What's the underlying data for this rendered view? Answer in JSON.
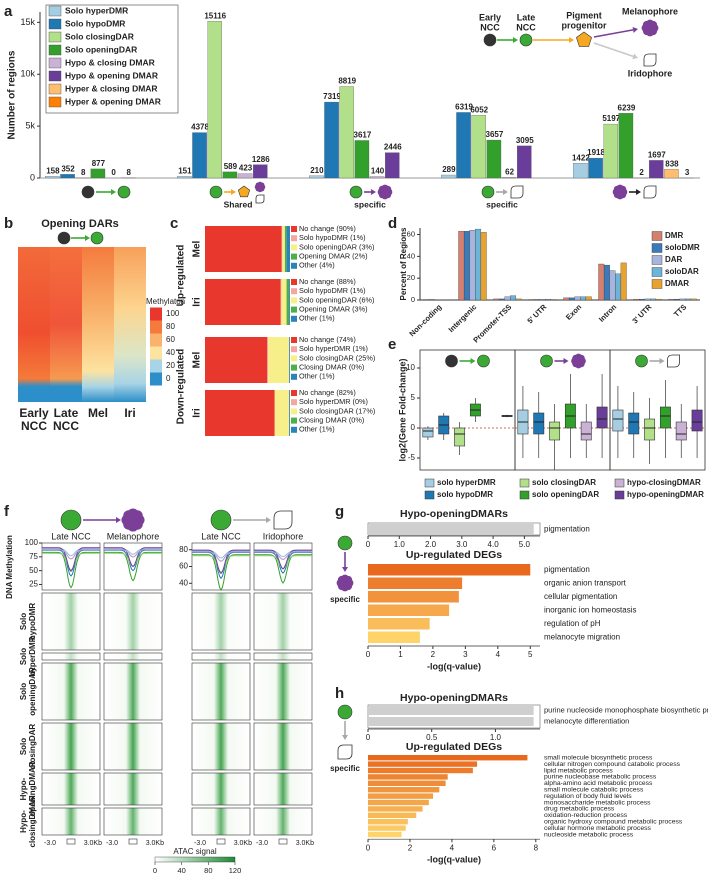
{
  "panel_labels": [
    "a",
    "b",
    "c",
    "d",
    "e",
    "f",
    "g",
    "h"
  ],
  "chart_data": [
    {
      "type": "bar",
      "ylabel": "Number of regions",
      "categories": [
        null,
        "Shared",
        "specific",
        "specific",
        null
      ],
      "series": [
        {
          "name": "Solo hyperDMR",
          "color": "#a6cee3",
          "values": [
            158,
            151,
            210,
            289,
            1422
          ]
        },
        {
          "name": "Solo hypoDMR",
          "color": "#1f78b4",
          "values": [
            352,
            4378,
            7319,
            6319,
            1918
          ]
        },
        {
          "name": "Solo closingDAR",
          "color": "#b2df8a",
          "values": [
            8,
            15116,
            8819,
            6052,
            5197
          ]
        },
        {
          "name": "Solo openingDAR",
          "color": "#33a02c",
          "values": [
            877,
            589,
            3617,
            3657,
            6239
          ]
        },
        {
          "name": "Hypo & closing DMAR",
          "color": "#cab2d6",
          "values": [
            0,
            423,
            140,
            62,
            2
          ]
        },
        {
          "name": "Hypo & opening DMAR",
          "color": "#6a3d9a",
          "values": [
            8,
            1286,
            2446,
            3095,
            1697
          ]
        },
        {
          "name": "Hyper & closing DMAR",
          "color": "#fdbf6f",
          "values": [
            null,
            null,
            null,
            null,
            838
          ]
        },
        {
          "name": "Hyper & opening DMAR",
          "color": "#ff7f00",
          "values": [
            null,
            null,
            null,
            null,
            3
          ]
        }
      ],
      "ylim": [
        0,
        16000
      ],
      "yticks": [
        0,
        {
          "value": 5000,
          "label": "5k"
        },
        {
          "value": 10000,
          "label": "10k"
        },
        {
          "value": 15000,
          "label": "15k"
        }
      ],
      "legend": "upper left"
    },
    {
      "type": "bar",
      "ylabel": "Percent of Regions",
      "categories": [
        "Non-coding",
        "Intergenic",
        "Promoter-TSS",
        "5' UTR",
        "Exon",
        "Intron",
        "3' UTR",
        "TTS"
      ],
      "series": [
        {
          "name": "DMR",
          "color": "#d4806f",
          "values": [
            0.5,
            63,
            1,
            0.5,
            2,
            33,
            0.8,
            0.8
          ]
        },
        {
          "name": "soloDMR",
          "color": "#3d7ab8",
          "values": [
            0.5,
            63,
            1,
            0.5,
            2,
            32,
            0.8,
            0.8
          ]
        },
        {
          "name": "DAR",
          "color": "#a9b4dd",
          "values": [
            0.3,
            64,
            3,
            0.8,
            3,
            27,
            1,
            1
          ]
        },
        {
          "name": "soloDAR",
          "color": "#6cb4d8",
          "values": [
            0.3,
            65,
            4,
            0.8,
            3,
            24,
            1,
            1
          ]
        },
        {
          "name": "DMAR",
          "color": "#e8a22f",
          "values": [
            0.3,
            62,
            1,
            0.5,
            3,
            34,
            0.8,
            1
          ]
        }
      ],
      "ylim": [
        0,
        66
      ],
      "yticks": [
        0,
        20,
        40,
        60
      ],
      "legend": "upper right"
    },
    {
      "type": "box",
      "ylabel": "log2(Gene Fold-change)",
      "series": [
        {
          "name": "solo hyperDMR",
          "color": "#a6cee3",
          "values": [
            [
              -2,
              -1.5,
              -0.5,
              0,
              0.3
            ],
            [
              -5,
              -1,
              1,
              3,
              7
            ],
            [
              -5,
              -0.5,
              1.5,
              3,
              7
            ]
          ]
        },
        {
          "name": "solo hypoDMR",
          "color": "#1f78b4",
          "values": [
            [
              -2,
              -1,
              0.5,
              2,
              2.5
            ],
            [
              -5,
              -1,
              1,
              2.5,
              6
            ],
            [
              -5,
              -1,
              1,
              2.5,
              6
            ]
          ]
        },
        {
          "name": "solo closingDAR",
          "color": "#b2df8a",
          "values": [
            [
              -4.5,
              -3,
              -1,
              0,
              1
            ],
            [
              -7,
              -2,
              0,
              1,
              4
            ],
            [
              -6,
              -2,
              0,
              1.5,
              5
            ]
          ]
        },
        {
          "name": "solo openingDAR",
          "color": "#33a02c",
          "values": [
            [
              1,
              2,
              3,
              4,
              5
            ],
            [
              -5,
              0,
              2,
              4,
              9
            ],
            [
              -5,
              0,
              2,
              3.5,
              8
            ]
          ]
        },
        {
          "name": "hypo-closingDMAR",
          "color": "#cab2d6",
          "values": [
            null,
            [
              -5,
              -2,
              -1,
              1,
              4
            ],
            [
              -5,
              -2,
              -1,
              1,
              4
            ]
          ]
        },
        {
          "name": "hypo-openingDMAR",
          "color": "#6a3d9a",
          "values": [
            [
              1.8,
              1.9,
              2,
              2.1,
              2.2
            ],
            [
              -5,
              0,
              1.5,
              3.5,
              9
            ],
            [
              -5,
              -0.5,
              1,
              3,
              7
            ]
          ]
        }
      ],
      "ylim": [
        -7,
        13
      ],
      "yticks": [
        -5,
        0,
        5,
        10
      ],
      "legend": "lower center"
    },
    {
      "type": "barh",
      "title": "Hypo-openingDMARs",
      "categories": [
        "pigmentation"
      ],
      "values": [
        5.3
      ],
      "label_colors": [
        "#e41a1c"
      ],
      "color": "#cfcfcf",
      "xlim": [
        0,
        5.5
      ],
      "xticks": [
        0,
        {
          "value": 1,
          "label": "1.0"
        },
        {
          "value": 2,
          "label": "2.0"
        },
        {
          "value": 3,
          "label": "3.0"
        },
        {
          "value": 4,
          "label": "4.0"
        },
        {
          "value": 5,
          "label": "5.0"
        }
      ]
    },
    {
      "type": "barh",
      "title": "Up-regulated DEGs",
      "categories": [
        "pigmentation",
        "organic anion transport",
        "cellular pigmentation",
        "inorganic ion homeostasis",
        "regulation of pH",
        "melanocyte migration"
      ],
      "values": [
        5.0,
        2.9,
        2.8,
        2.5,
        1.9,
        1.6
      ],
      "label_colors": [
        "#e41a1c",
        "#333333",
        "#333333",
        "#333333",
        "#333333",
        "#333333"
      ],
      "color": "#e8691e",
      "xlim": [
        0,
        5.3
      ],
      "xticks": [
        0,
        1,
        2,
        3,
        4,
        5
      ],
      "xlabel": "-log(q-value)"
    },
    {
      "type": "barh",
      "title": "Hypo-openingDMARs",
      "categories": [
        "purine nucleoside monophosphate biosynthetic process",
        "melanocyte differentiation"
      ],
      "values": [
        1.3,
        1.3
      ],
      "label_colors": [
        "#e41a1c",
        "#333333"
      ],
      "color": "#cfcfcf",
      "xlim": [
        0,
        1.35
      ],
      "xticks": [
        0,
        0.5,
        {
          "value": 1,
          "label": "1.0"
        }
      ]
    },
    {
      "type": "barh",
      "title": "Up-regulated DEGs",
      "categories": [
        "small molecule biosynthetic process",
        "cellular nitrogen compound catabolic process",
        "lipid metabolic process",
        "purine nucleobase metabolic process",
        "alpha-amino acid metabolic process",
        "small molecule catabolic process",
        "regulation of body fluid levels",
        "monosaccharide metabolic process",
        "drug metabolic process",
        "oxidation-reduction process",
        "organic hydroxy compound metabolic process",
        "cellular hormone metabolic process",
        "nucleoside metabolic process"
      ],
      "values": [
        7.6,
        5.2,
        5.0,
        3.8,
        3.7,
        3.4,
        3.1,
        2.9,
        2.6,
        2.3,
        1.9,
        1.8,
        1.6
      ],
      "label_colors": [
        "#333333",
        "#333333",
        "#333333",
        "#e41a1c",
        "#333333",
        "#333333",
        "#333333",
        "#333333",
        "#333333",
        "#333333",
        "#333333",
        "#333333",
        "#333333"
      ],
      "color": "#e8691e",
      "xlim": [
        0,
        8.2
      ],
      "xticks": [
        0,
        2,
        4,
        6,
        8
      ],
      "xlabel": "-log(q-value)"
    }
  ],
  "schematic": {
    "nodes": [
      {
        "lines": [
          "Early",
          "NCC"
        ],
        "color": "#222222"
      },
      {
        "lines": [
          "Late",
          "NCC"
        ],
        "color": "#3aaa35"
      },
      {
        "lines": [
          "Pigment",
          "progenitor"
        ],
        "color": "#f7a823"
      },
      {
        "lines": [
          "Melanophore"
        ],
        "color": "#7b3f98"
      },
      {
        "lines": [
          "Iridophore"
        ],
        "color": "#a8a8a8"
      }
    ]
  },
  "heatmap": {
    "title": "Opening DARs",
    "columns": [
      {
        "lines": [
          "Early",
          "NCC"
        ],
        "color": "#111111"
      },
      {
        "lines": [
          "Late",
          "NCC"
        ],
        "color": "#3aaa35"
      },
      {
        "lines": [
          "Mel"
        ],
        "color": "#7b3f98"
      },
      {
        "lines": [
          "Iri"
        ],
        "color": "#a8a8a8"
      }
    ],
    "legend_title": "Methylaton",
    "clim": [
      0,
      100
    ],
    "ticks": [
      100,
      80,
      60,
      40,
      20,
      0
    ],
    "tick_colors": [
      "#e8372c",
      "#f47b3d",
      "#f9b36c",
      "#fde3a0",
      "#a9d4e6",
      "#2c8fc9"
    ]
  },
  "stacked": {
    "groups": [
      {
        "label": "Up-regulated",
        "blocks": [
          {
            "label": "Mel",
            "color": "#7b3f98",
            "items": [
              {
                "label": "No change (90%)",
                "value": 90,
                "color": "#e8372c"
              },
              {
                "label": "Solo hypoDMR (1%)",
                "value": 1,
                "color": "#f4a6a0"
              },
              {
                "label": "Solo openingDAR (3%)",
                "value": 3,
                "color": "#f7ef8a"
              },
              {
                "label": "Opening DMAR (2%)",
                "value": 2,
                "color": "#4daf4a"
              },
              {
                "label": "Other (4%)",
                "value": 4,
                "color": "#2b83ba"
              }
            ]
          },
          {
            "label": "Iri",
            "color": "#a8a8a8",
            "items": [
              {
                "label": "No change (88%)",
                "value": 88,
                "color": "#e8372c"
              },
              {
                "label": "Solo hypoDMR (1%)",
                "value": 1,
                "color": "#f4a6a0"
              },
              {
                "label": "Solo openingDAR (6%)",
                "value": 6,
                "color": "#f7ef8a"
              },
              {
                "label": "Opening DMAR (3%)",
                "value": 3,
                "color": "#4daf4a"
              },
              {
                "label": "Other (1%)",
                "value": 1,
                "color": "#2b83ba"
              }
            ]
          }
        ]
      },
      {
        "label": "Down-regulated",
        "blocks": [
          {
            "label": "Mel",
            "color": "#7b3f98",
            "items": [
              {
                "label": "No change (74%)",
                "value": 74,
                "color": "#e8372c"
              },
              {
                "label": "Solo hyperDMR (1%)",
                "value": 1,
                "color": "#f4a6a0"
              },
              {
                "label": "Solo closingDAR (25%)",
                "value": 25,
                "color": "#f7ef8a"
              },
              {
                "label": "Closing DMAR (0%)",
                "value": 0,
                "color": "#4daf4a"
              },
              {
                "label": "Other (1%)",
                "value": 1,
                "color": "#2b83ba"
              }
            ]
          },
          {
            "label": "Iri",
            "color": "#a8a8a8",
            "items": [
              {
                "label": "No change (82%)",
                "value": 82,
                "color": "#e8372c"
              },
              {
                "label": "Solo hyperDMR (0%)",
                "value": 0,
                "color": "#f4a6a0"
              },
              {
                "label": "Solo closingDAR (17%)",
                "value": 17,
                "color": "#f7ef8a"
              },
              {
                "label": "Closing DMAR (0%)",
                "value": 0,
                "color": "#4daf4a"
              },
              {
                "label": "Other (1%)",
                "value": 1,
                "color": "#2b83ba"
              }
            ]
          }
        ]
      }
    ]
  },
  "profiles": {
    "ylabel": "DNA Methylation",
    "pairs": [
      {
        "columns": [
          "Late NCC",
          "Melanophore"
        ],
        "ylim": [
          15,
          100
        ],
        "yticks": [
          100,
          75,
          50,
          25
        ]
      },
      {
        "columns": [
          "Late NCC",
          "Iridophore"
        ],
        "ylim": [
          32,
          88
        ],
        "yticks": [
          80,
          60,
          40
        ]
      }
    ],
    "rows": [
      {
        "lines": [
          "Solo",
          "hypoDMR"
        ],
        "color": "#1f78b4"
      },
      {
        "lines": [
          "Solo",
          "hyperDMR"
        ],
        "color": "#8ec3e0"
      },
      {
        "lines": [
          "Solo",
          "openingDAR"
        ],
        "color": "#33a02c"
      },
      {
        "lines": [
          "Solo",
          "closingDAR"
        ],
        "color": "#8fcf6a"
      },
      {
        "lines": [
          "Hypo-",
          "openingDMAR"
        ],
        "color": "#6a3d9a"
      },
      {
        "lines": [
          "Hypo-",
          "closingDMAR"
        ],
        "color": "#b493c9"
      }
    ],
    "xlabels": [
      "-3.0",
      "3.0Kb"
    ],
    "colorbar": {
      "title": "ATAC signal",
      "clim": [
        0,
        120
      ],
      "ticks": [
        0,
        40,
        80,
        120
      ]
    }
  },
  "go_icons": {
    "g": "specific",
    "h": "specific"
  }
}
